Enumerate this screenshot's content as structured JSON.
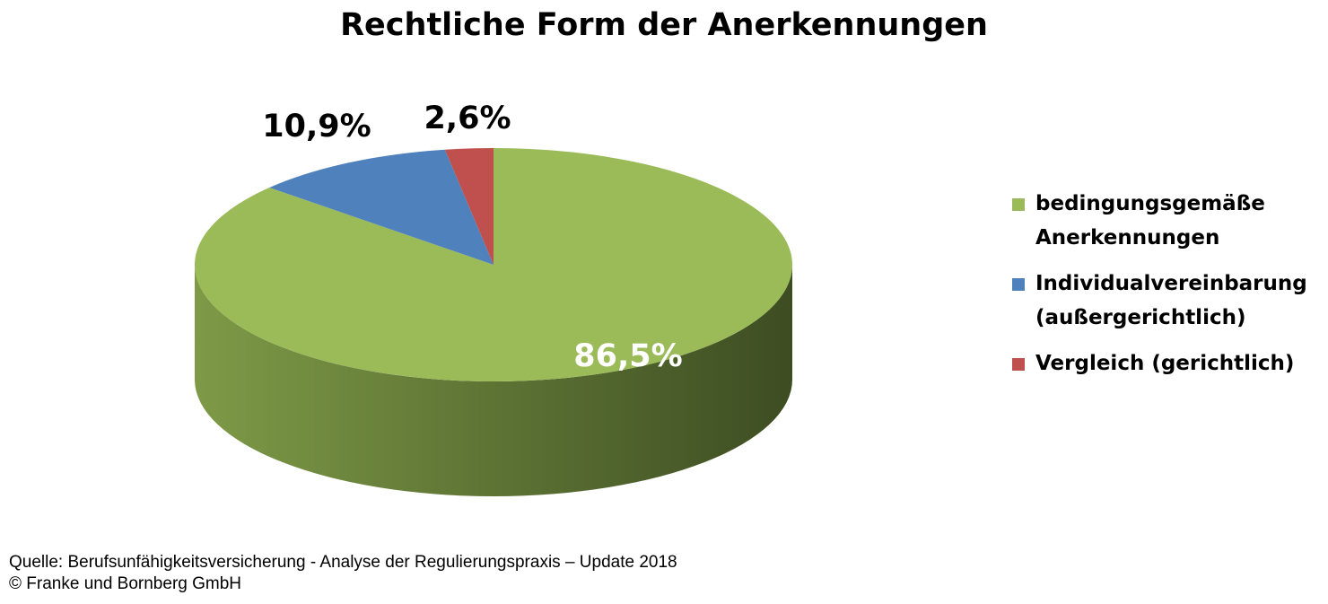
{
  "chart_data": {
    "type": "pie",
    "title": "Rechtliche Form der Anerkennungen",
    "slices": [
      {
        "label": "bedingungsgemäße Anerkennungen",
        "value": 86.5,
        "value_label": "86,5%",
        "color": "#9bbb59",
        "side_dark": "#3d4d22",
        "side_light": "#7e9a47",
        "label_color": "#ffffff"
      },
      {
        "label": "Individualvereinbarung (außergerichtlich)",
        "value": 10.9,
        "value_label": "10,9%",
        "color": "#4f81bd",
        "label_color": "#000000"
      },
      {
        "label": "Vergleich (gerichtlich)",
        "value": 2.6,
        "value_label": "2,6%",
        "color": "#c0504d",
        "label_color": "#000000"
      }
    ],
    "legend": {
      "position": "right",
      "entries": [
        {
          "lines": [
            "bedingungsgemäße",
            "Anerkennungen"
          ],
          "color": "#9bbb59"
        },
        {
          "lines": [
            "Individualvereinbarung",
            "(außergerichtlich)"
          ],
          "color": "#4f81bd"
        },
        {
          "lines": [
            "Vergleich (gerichtlich)"
          ],
          "color": "#c0504d"
        }
      ]
    }
  },
  "source": {
    "line1": "Quelle: Berufsunfähigkeitsversicherung - Analyse der Regulierungspraxis – Update 2018",
    "line2": "© Franke und Bornberg GmbH"
  }
}
